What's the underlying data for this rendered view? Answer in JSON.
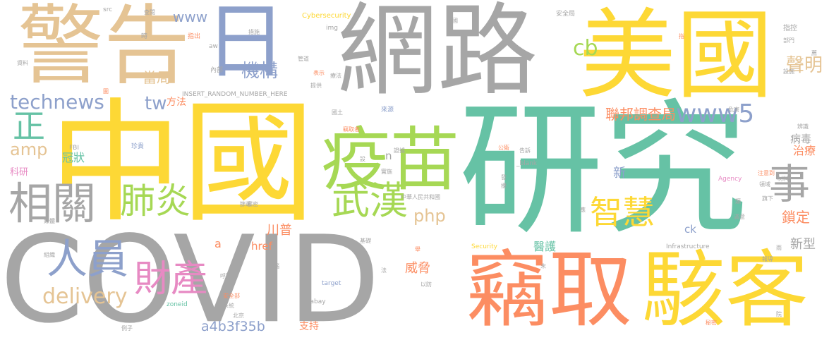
{
  "palette": {
    "gray": "#a6a6a6",
    "yellow": "#fdd835",
    "green": "#66c2a5",
    "orange": "#fc8d62",
    "tan": "#e5c494",
    "blue": "#8da0cb",
    "lime": "#a6d854",
    "pink": "#e78ac3"
  },
  "words": [
    {
      "text": "COVID"
    },
    {
      "text": "研究"
    },
    {
      "text": "中國"
    },
    {
      "text": "網路"
    },
    {
      "text": "警告"
    },
    {
      "text": "美國"
    },
    {
      "text": "竊取"
    },
    {
      "text": "駭客"
    },
    {
      "text": "疫苗"
    },
    {
      "text": "日"
    },
    {
      "text": "相關"
    },
    {
      "text": "人員"
    },
    {
      "text": "財產"
    },
    {
      "text": "肺炎"
    },
    {
      "text": "武漢"
    },
    {
      "text": "智慧"
    },
    {
      "text": "事"
    },
    {
      "text": "正"
    },
    {
      "text": "technews"
    },
    {
      "text": "www5"
    },
    {
      "text": "delivery"
    },
    {
      "text": "機構"
    },
    {
      "text": "當局"
    },
    {
      "text": "聲明"
    },
    {
      "text": "聯邦調查局"
    },
    {
      "text": "cb"
    },
    {
      "text": "www"
    },
    {
      "text": "tw"
    },
    {
      "text": "php"
    },
    {
      "text": "amp"
    },
    {
      "text": "川普"
    },
    {
      "text": "威脅"
    },
    {
      "text": "鎖定"
    },
    {
      "text": "a4b3f35b"
    },
    {
      "text": "新型"
    },
    {
      "text": "醫護"
    },
    {
      "text": "治療"
    },
    {
      "text": "病毒"
    },
    {
      "text": "冠狀"
    },
    {
      "text": "方法"
    },
    {
      "text": "支持"
    },
    {
      "text": "href"
    },
    {
      "text": "ck"
    },
    {
      "text": "新"
    },
    {
      "text": "科研"
    },
    {
      "text": "a"
    },
    {
      "text": "n"
    },
    {
      "text": "Cybersecurity"
    },
    {
      "text": "安全局"
    },
    {
      "text": "指控"
    },
    {
      "text": "INSERT_RANDOM_NUMBER_HERE"
    },
    {
      "text": "Infrastructure"
    },
    {
      "text": "Security"
    },
    {
      "text": "Agency"
    },
    {
      "text": "_blank"
    },
    {
      "text": "target"
    },
    {
      "text": "pixabay"
    },
    {
      "text": "zoneid"
    },
    {
      "text": "FBI"
    },
    {
      "text": "img"
    },
    {
      "text": "aw"
    },
    {
      "text": "src"
    },
    {
      "text": "中華人民共和國"
    },
    {
      "text": "來源"
    },
    {
      "text": "國土"
    },
    {
      "text": "竊取者"
    },
    {
      "text": "珍貴"
    },
    {
      "text": "措施"
    },
    {
      "text": "時"
    },
    {
      "text": "指出"
    },
    {
      "text": "內部"
    },
    {
      "text": "提供"
    },
    {
      "text": "管道"
    },
    {
      "text": "我國"
    },
    {
      "text": "因應"
    },
    {
      "text": "部門"
    },
    {
      "text": "設施"
    },
    {
      "text": "資料"
    },
    {
      "text": "表示"
    },
    {
      "text": "領域"
    },
    {
      "text": "旗下"
    },
    {
      "text": "材料"
    },
    {
      "text": "注意到"
    },
    {
      "text": "危害"
    },
    {
      "text": "辨識"
    },
    {
      "text": "實施"
    },
    {
      "text": "基礎"
    },
    {
      "text": "以防"
    },
    {
      "text": "北京"
    },
    {
      "text": "例子"
    },
    {
      "text": "組織"
    },
    {
      "text": "媒體"
    },
    {
      "text": "呼籲"
    },
    {
      "text": "系統"
    },
    {
      "text": "安全部"
    },
    {
      "text": "竊密"
    },
    {
      "text": "秘密"
    },
    {
      "text": "報導"
    },
    {
      "text": "滿意"
    },
    {
      "text": "雨"
    },
    {
      "text": "類"
    },
    {
      "text": "應"
    },
    {
      "text": "發"
    },
    {
      "text": "法"
    },
    {
      "text": "末"
    },
    {
      "text": "指"
    },
    {
      "text": "告訴"
    },
    {
      "text": "公衛"
    },
    {
      "text": "設"
    },
    {
      "text": "證據"
    },
    {
      "text": "查閱"
    },
    {
      "text": "擾"
    },
    {
      "text": "院"
    },
    {
      "text": "療法"
    },
    {
      "text": "薦"
    },
    {
      "text": "圖"
    },
    {
      "text": "舉"
    },
    {
      "text": "首腦"
    },
    {
      "text": "篩選"
    }
  ]
}
